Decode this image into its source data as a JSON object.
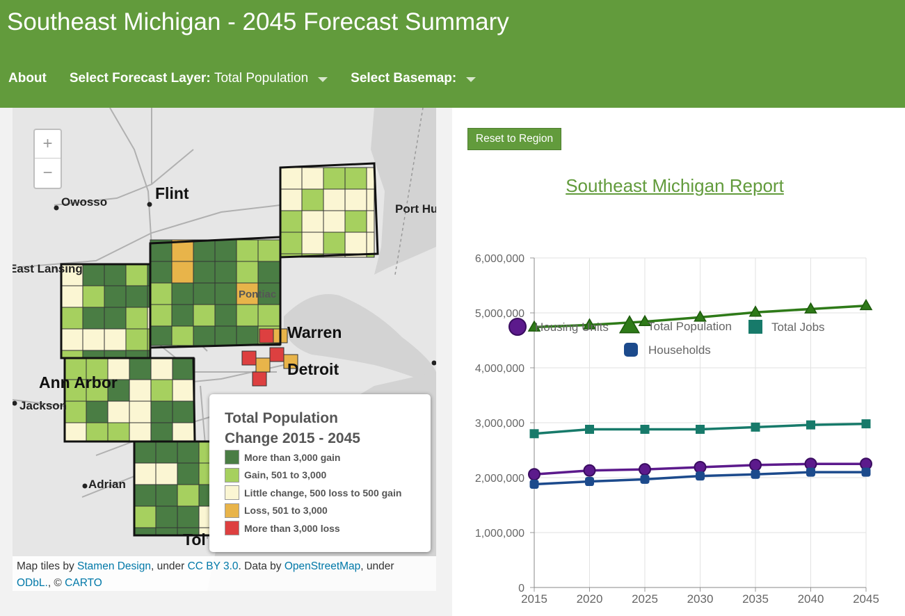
{
  "header": {
    "title": "Southeast Michigan - 2045 Forecast Summary",
    "about_label": "About",
    "layer_label": "Select Forecast Layer",
    "layer_value": "Total Population",
    "basemap_label": "Select Basemap",
    "colon": ":"
  },
  "map": {
    "zoom_in": "+",
    "zoom_out": "−",
    "places": {
      "flint": "Flint",
      "owosso": "Owosso",
      "port_huron": "Port Hu",
      "east_lansing": "East Lansing",
      "pontiac": "Pontiac",
      "warren": "Warren",
      "detroit": "Detroit",
      "ann_arbor": "Ann Arbor",
      "jackson": "Jackson",
      "adrian": "Adrian",
      "toledo": "Tol"
    },
    "legend": {
      "title": "Total Population Change 2015 - 2045",
      "items": [
        {
          "label": "More than 3,000 gain",
          "color": "#4a7d44"
        },
        {
          "label": "Gain, 501 to 3,000",
          "color": "#a6d05f"
        },
        {
          "label": "Little change, 500 loss to 500 gain",
          "color": "#fbf6d3"
        },
        {
          "label": "Loss, 501 to 3,000",
          "color": "#e8b44a"
        },
        {
          "label": "More than 3,000 loss",
          "color": "#dd4040"
        }
      ]
    },
    "attribution": {
      "t1": "Map tiles by ",
      "l1": "Stamen Design",
      "t2": ", under ",
      "l2": "CC BY 3.0",
      "t3": ". Data by ",
      "l3": "OpenStreetMap",
      "t4": ", under ",
      "l4": "ODbL.",
      "t5": ", © ",
      "l5": "CARTO"
    }
  },
  "report": {
    "reset_label": "Reset to Region",
    "title": "Southeast Michigan Report"
  },
  "chart_data": {
    "type": "line",
    "title": "Southeast Michigan Report",
    "x": [
      2015,
      2020,
      2025,
      2030,
      2035,
      2040,
      2045
    ],
    "ylim": [
      0,
      6000000
    ],
    "yticks": [
      0,
      1000000,
      2000000,
      3000000,
      4000000,
      5000000,
      6000000
    ],
    "ytick_labels": [
      "0",
      "1,000,000",
      "2,000,000",
      "3,000,000",
      "4,000,000",
      "5,000,000",
      "6,000,000"
    ],
    "grid": true,
    "legend_position": "top",
    "series": [
      {
        "name": "Housing Units",
        "color": "#5c1a8c",
        "marker": "circle",
        "values": [
          2060000,
          2130000,
          2150000,
          2190000,
          2230000,
          2250000,
          2250000
        ]
      },
      {
        "name": "Total Population",
        "color": "#2e7a18",
        "marker": "triangle",
        "values": [
          4740000,
          4780000,
          4840000,
          4920000,
          5010000,
          5070000,
          5130000
        ]
      },
      {
        "name": "Total Jobs",
        "color": "#177a6a",
        "marker": "square",
        "values": [
          2800000,
          2880000,
          2880000,
          2880000,
          2920000,
          2960000,
          2980000
        ]
      },
      {
        "name": "Households",
        "color": "#1c4a8c",
        "marker": "roundsquare",
        "values": [
          1880000,
          1930000,
          1970000,
          2030000,
          2060000,
          2100000,
          2100000
        ]
      }
    ]
  }
}
